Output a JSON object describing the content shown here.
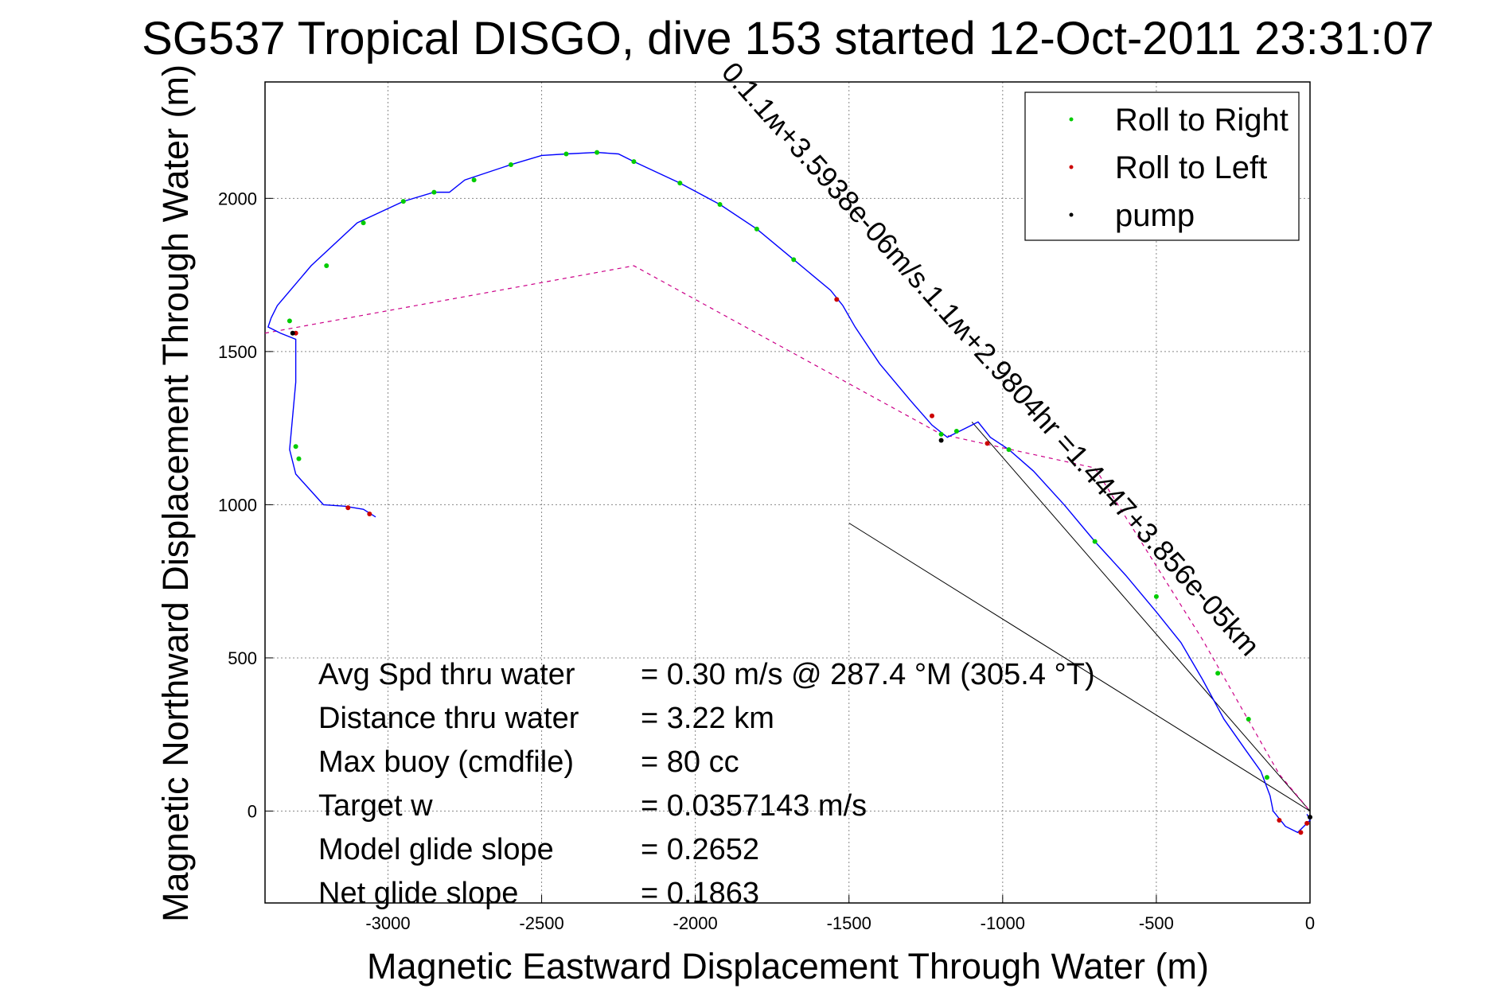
{
  "chart_data": {
    "type": "line",
    "title": "SG537 Tropical DISGO, dive 153 started 12-Oct-2011 23:31:07",
    "xlabel": "Magnetic Eastward Displacement Through Water (m)",
    "ylabel": "Magnetic Northward Displacement Through Water (m)",
    "xlim": [
      -3400,
      0
    ],
    "ylim": [
      -300,
      2380
    ],
    "xticks": [
      -3000,
      -2500,
      -2000,
      -1500,
      -1000,
      -500,
      0
    ],
    "yticks": [
      0,
      500,
      1000,
      1500,
      2000
    ],
    "grid": true,
    "legend_position": "top-right",
    "legend": [
      {
        "label": "Roll to Right",
        "color": "#00cc00"
      },
      {
        "label": "Roll to Left",
        "color": "#cc0000"
      },
      {
        "label": "pump",
        "color": "#000000"
      }
    ],
    "track_color": "#0000ff",
    "track": {
      "x": [
        -3040,
        -3080,
        -3140,
        -3210,
        -3300,
        -3320,
        -3300,
        -3300,
        -3350,
        -3390,
        -3380,
        -3360,
        -3250,
        -3100,
        -2950,
        -2850,
        -2800,
        -2750,
        -2600,
        -2500,
        -2420,
        -2320,
        -2250,
        -2200,
        -2050,
        -1920,
        -1800,
        -1680,
        -1560,
        -1520,
        -1480,
        -1400,
        -1300,
        -1230,
        -1180,
        -1120,
        -1080,
        -1040,
        -980,
        -900,
        -800,
        -700,
        -600,
        -500,
        -420,
        -350,
        -280,
        -210,
        -160,
        -130,
        -120,
        -80,
        -40,
        0,
        -10
      ],
      "y": [
        960,
        985,
        995,
        1000,
        1100,
        1180,
        1400,
        1540,
        1560,
        1580,
        1610,
        1650,
        1780,
        1920,
        1990,
        2020,
        2020,
        2060,
        2110,
        2140,
        2145,
        2150,
        2145,
        2120,
        2050,
        1980,
        1900,
        1800,
        1700,
        1650,
        1580,
        1460,
        1340,
        1260,
        1220,
        1250,
        1270,
        1220,
        1180,
        1110,
        1000,
        880,
        770,
        650,
        550,
        430,
        300,
        200,
        130,
        50,
        0,
        -50,
        -70,
        -30,
        -10
      ]
    },
    "reference_line": {
      "x": [
        -3400,
        -2200,
        -1200,
        -700,
        -350,
        -100,
        0
      ],
      "y": [
        1560,
        1780,
        1230,
        1120,
        560,
        120,
        0
      ]
    },
    "lines_to_origin": [
      {
        "x": [
          -1100,
          0
        ],
        "y": [
          1270,
          0
        ]
      },
      {
        "x": [
          -1500,
          0
        ],
        "y": [
          940,
          0
        ]
      }
    ],
    "markers": [
      {
        "x": -3300,
        "y": 1560,
        "color": "#cc0000"
      },
      {
        "x": -3320,
        "y": 1600,
        "color": "#00cc00"
      },
      {
        "x": -3300,
        "y": 1190,
        "color": "#00cc00"
      },
      {
        "x": -3290,
        "y": 1150,
        "color": "#00cc00"
      },
      {
        "x": -3130,
        "y": 990,
        "color": "#cc0000"
      },
      {
        "x": -3060,
        "y": 970,
        "color": "#cc0000"
      },
      {
        "x": -3200,
        "y": 1780,
        "color": "#00cc00"
      },
      {
        "x": -3080,
        "y": 1920,
        "color": "#00cc00"
      },
      {
        "x": -2950,
        "y": 1990,
        "color": "#00cc00"
      },
      {
        "x": -2850,
        "y": 2020,
        "color": "#00cc00"
      },
      {
        "x": -2720,
        "y": 2060,
        "color": "#00cc00"
      },
      {
        "x": -2600,
        "y": 2110,
        "color": "#00cc00"
      },
      {
        "x": -2420,
        "y": 2145,
        "color": "#00cc00"
      },
      {
        "x": -2320,
        "y": 2150,
        "color": "#00cc00"
      },
      {
        "x": -2200,
        "y": 2120,
        "color": "#00cc00"
      },
      {
        "x": -2050,
        "y": 2050,
        "color": "#00cc00"
      },
      {
        "x": -1920,
        "y": 1980,
        "color": "#00cc00"
      },
      {
        "x": -1800,
        "y": 1900,
        "color": "#00cc00"
      },
      {
        "x": -1680,
        "y": 1800,
        "color": "#00cc00"
      },
      {
        "x": -1540,
        "y": 1670,
        "color": "#cc0000"
      },
      {
        "x": -1230,
        "y": 1290,
        "color": "#cc0000"
      },
      {
        "x": -1200,
        "y": 1230,
        "color": "#00cc00"
      },
      {
        "x": -1150,
        "y": 1240,
        "color": "#00cc00"
      },
      {
        "x": -1050,
        "y": 1200,
        "color": "#cc0000"
      },
      {
        "x": -980,
        "y": 1180,
        "color": "#00cc00"
      },
      {
        "x": -700,
        "y": 880,
        "color": "#00cc00"
      },
      {
        "x": -500,
        "y": 700,
        "color": "#00cc00"
      },
      {
        "x": -300,
        "y": 450,
        "color": "#00cc00"
      },
      {
        "x": -200,
        "y": 300,
        "color": "#00cc00"
      },
      {
        "x": -140,
        "y": 110,
        "color": "#00cc00"
      },
      {
        "x": -100,
        "y": -30,
        "color": "#cc0000"
      },
      {
        "x": -30,
        "y": -70,
        "color": "#cc0000"
      },
      {
        "x": -10,
        "y": -40,
        "color": "#cc0000"
      },
      {
        "x": -3310,
        "y": 1560,
        "color": "#000000"
      },
      {
        "x": -1200,
        "y": 1210,
        "color": "#000000"
      },
      {
        "x": 0,
        "y": -20,
        "color": "#000000"
      }
    ],
    "annotations": [
      {
        "label": "Avg Spd thru water",
        "value": "=  0.30 m/s @ 287.4 °M (305.4 °T)"
      },
      {
        "label": "Distance thru water",
        "value": "=  3.22 km"
      },
      {
        "label": "Max buoy (cmdfile)",
        "value": "= 80 cc"
      },
      {
        "label": "Target w",
        "value": "= 0.0357143 m/s"
      },
      {
        "label": "Model glide slope",
        "value": "= 0.2652"
      },
      {
        "label": "Net glide slope",
        "value": "= 0.1863"
      }
    ],
    "diagonal_label": "0.1.1ʍ+3.5938e-06m/s.1.1ʍ+2.9804hr =1.4447+3.856e-05km"
  }
}
